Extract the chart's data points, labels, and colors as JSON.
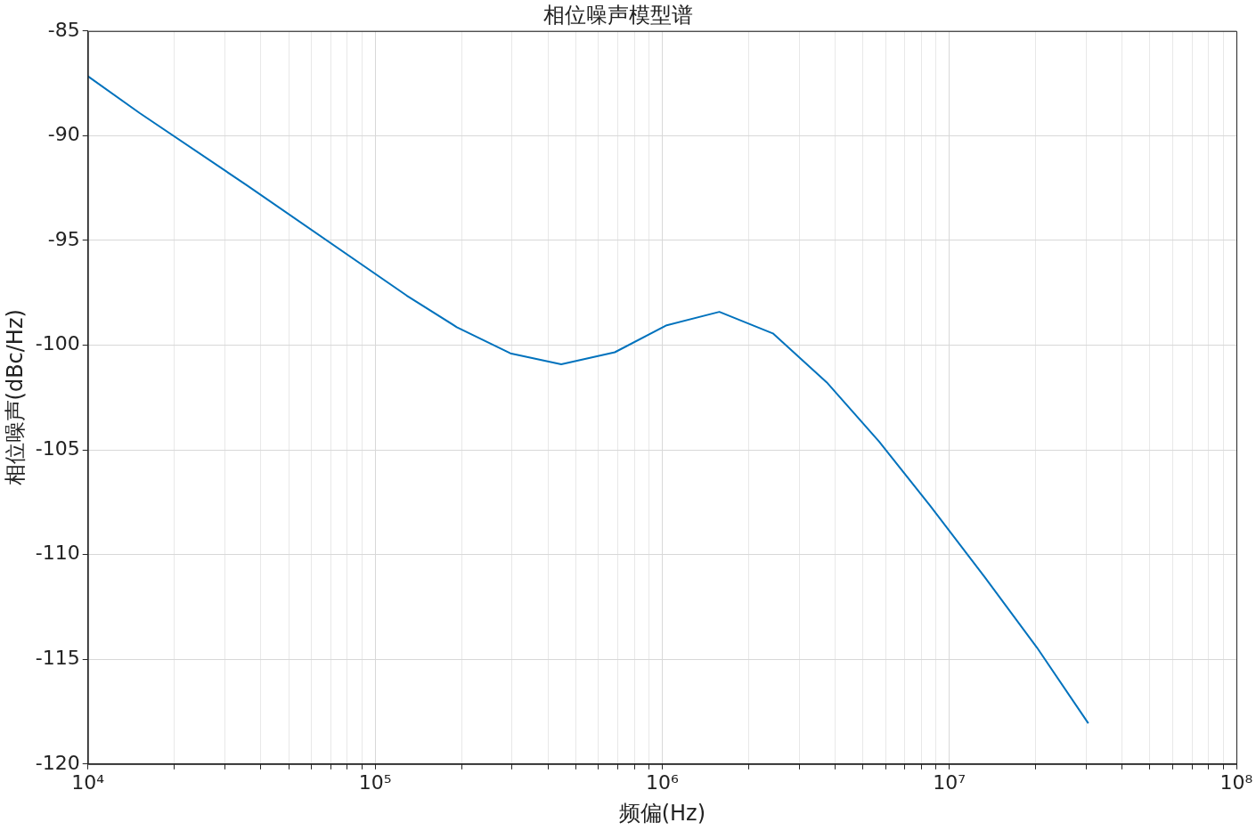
{
  "chart_data": {
    "type": "line",
    "title": "相位噪声模型谱",
    "xlabel": "频偏(Hz)",
    "ylabel": "相位噪声(dBc/Hz)",
    "log": "x",
    "grid": true,
    "legend": false,
    "marker": "none",
    "line_style": "solid",
    "x": [
      10000,
      15150,
      35800,
      128800,
      192600,
      296000,
      445000,
      684000,
      1037000,
      1582000,
      2430000,
      3740000,
      5700000,
      8580000,
      13300000,
      20200000,
      30500000
    ],
    "series": [
      {
        "color": "#0072bd",
        "values": [
          -87.16,
          -88.92,
          -92.37,
          -97.63,
          -99.14,
          -100.39,
          -100.91,
          -100.34,
          -99.05,
          -98.41,
          -99.44,
          -101.77,
          -104.61,
          -107.67,
          -111.08,
          -114.44,
          -118.06
        ]
      }
    ],
    "xlim": [
      10000,
      100000000
    ],
    "xticks": [
      {
        "value": 10000,
        "label": "10⁴"
      },
      {
        "value": 20000,
        "label": null
      },
      {
        "value": 30000,
        "label": null
      },
      {
        "value": 40000,
        "label": null
      },
      {
        "value": 50000,
        "label": null
      },
      {
        "value": 60000,
        "label": null
      },
      {
        "value": 70000,
        "label": null
      },
      {
        "value": 80000,
        "label": null
      },
      {
        "value": 90000,
        "label": null
      },
      {
        "value": 100000,
        "label": "10⁵"
      },
      {
        "value": 200000,
        "label": null
      },
      {
        "value": 300000,
        "label": null
      },
      {
        "value": 400000,
        "label": null
      },
      {
        "value": 500000,
        "label": null
      },
      {
        "value": 600000,
        "label": null
      },
      {
        "value": 700000,
        "label": null
      },
      {
        "value": 800000,
        "label": null
      },
      {
        "value": 900000,
        "label": null
      },
      {
        "value": 1000000,
        "label": "10⁶"
      },
      {
        "value": 2000000,
        "label": null
      },
      {
        "value": 3000000,
        "label": null
      },
      {
        "value": 4000000,
        "label": null
      },
      {
        "value": 5000000,
        "label": null
      },
      {
        "value": 6000000,
        "label": null
      },
      {
        "value": 7000000,
        "label": null
      },
      {
        "value": 8000000,
        "label": null
      },
      {
        "value": 9000000,
        "label": null
      },
      {
        "value": 10000000,
        "label": "10⁷"
      },
      {
        "value": 20000000,
        "label": null
      },
      {
        "value": 30000000,
        "label": null
      },
      {
        "value": 40000000,
        "label": null
      },
      {
        "value": 50000000,
        "label": null
      },
      {
        "value": 60000000,
        "label": null
      },
      {
        "value": 70000000,
        "label": null
      },
      {
        "value": 80000000,
        "label": null
      },
      {
        "value": 90000000,
        "label": null
      },
      {
        "value": 100000000,
        "label": "10⁸"
      }
    ],
    "ylim": [
      -120,
      -85
    ],
    "yticks": [
      -120,
      -115,
      -110,
      -105,
      -100,
      -95,
      -90,
      -85
    ]
  }
}
